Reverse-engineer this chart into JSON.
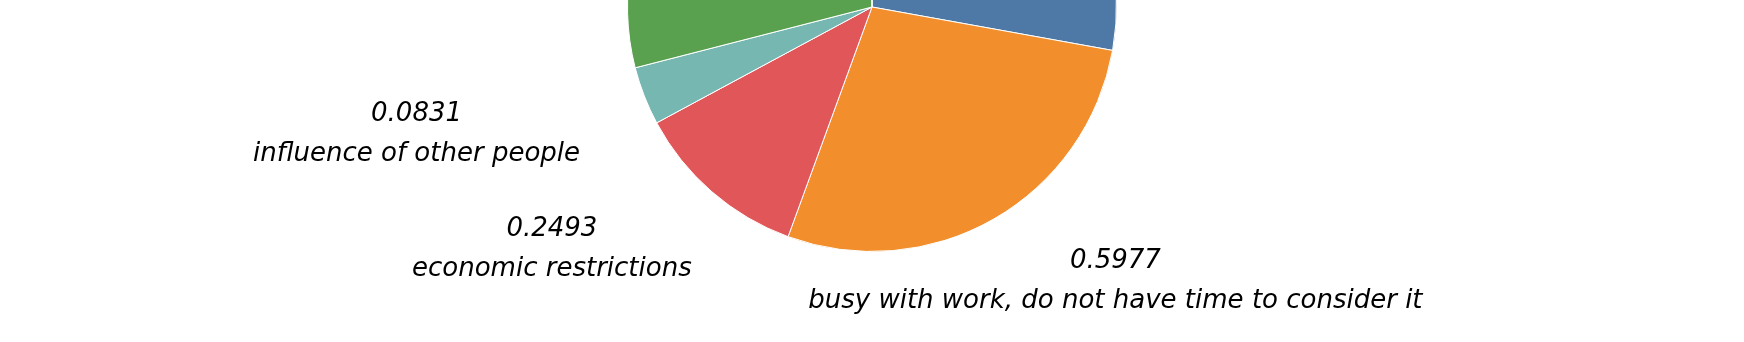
{
  "chart_data": {
    "type": "pie",
    "categories": [
      null,
      "busy with work, do not have time to consider it",
      "economic restrictions",
      "influence of other people",
      null,
      null
    ],
    "values": [
      0.6,
      0.5977,
      0.2493,
      0.0831,
      0.62,
      0.005
    ],
    "value_labels": [
      null,
      "0.5977",
      "0.2493",
      "0.0831",
      null,
      null
    ],
    "colors": [
      "#4e79a7",
      "#f28e2b",
      "#e15759",
      "#76b7b2",
      "#59a14f",
      "#edc948"
    ]
  }
}
